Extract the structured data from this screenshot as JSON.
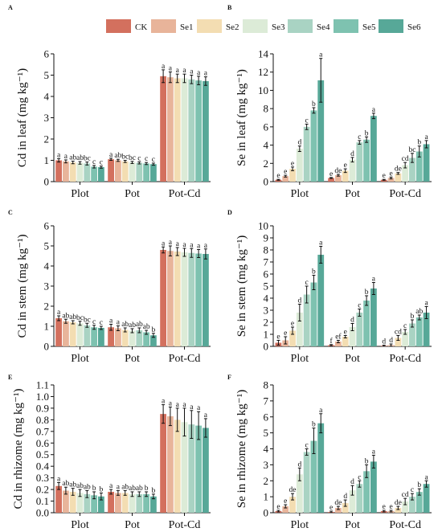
{
  "legend": [
    {
      "name": "CK",
      "color": "#D3705E"
    },
    {
      "name": "Se1",
      "color": "#E8B49A"
    },
    {
      "name": "Se2",
      "color": "#F3DDB2"
    },
    {
      "name": "Se3",
      "color": "#DCEBD7"
    },
    {
      "name": "Se4",
      "color": "#A9D3C3"
    },
    {
      "name": "Se5",
      "color": "#7EC2B0"
    },
    {
      "name": "Se6",
      "color": "#57A898"
    }
  ],
  "chart_data": [
    {
      "panel": "A",
      "type": "bar",
      "ylabel": "Cd in leaf (mg kg⁻¹)",
      "ylim": [
        0,
        6
      ],
      "yticks": [
        "0",
        "1",
        "2",
        "3",
        "4",
        "5",
        "6"
      ],
      "categories": [
        "Plot",
        "Pot",
        "Pot-Cd"
      ],
      "series": [
        {
          "name": "CK",
          "values": [
            1.0,
            1.05,
            4.95
          ],
          "errors": [
            0.08,
            0.05,
            0.3
          ],
          "labels": [
            "a",
            "a",
            "a"
          ]
        },
        {
          "name": "Se1",
          "values": [
            0.95,
            1.0,
            4.9
          ],
          "errors": [
            0.07,
            0.05,
            0.25
          ],
          "labels": [
            "a",
            "ab",
            "a"
          ]
        },
        {
          "name": "Se2",
          "values": [
            0.9,
            0.95,
            4.85
          ],
          "errors": [
            0.06,
            0.05,
            0.2
          ],
          "labels": [
            "ab",
            "bc",
            "a"
          ]
        },
        {
          "name": "Se3",
          "values": [
            0.88,
            0.9,
            4.85
          ],
          "errors": [
            0.06,
            0.05,
            0.2
          ],
          "labels": [
            "ab",
            "bc",
            "a"
          ]
        },
        {
          "name": "Se4",
          "values": [
            0.85,
            0.88,
            4.8
          ],
          "errors": [
            0.07,
            0.05,
            0.2
          ],
          "labels": [
            "bc",
            "c",
            "a"
          ]
        },
        {
          "name": "Se5",
          "values": [
            0.7,
            0.85,
            4.75
          ],
          "errors": [
            0.06,
            0.05,
            0.2
          ],
          "labels": [
            "c",
            "c",
            "a"
          ]
        },
        {
          "name": "Se6",
          "values": [
            0.68,
            0.82,
            4.72
          ],
          "errors": [
            0.05,
            0.05,
            0.2
          ],
          "labels": [
            "c",
            "c",
            "a"
          ]
        }
      ]
    },
    {
      "panel": "B",
      "type": "bar",
      "ylabel": "Se in leaf (mg kg⁻¹)",
      "ylim": [
        0,
        14
      ],
      "yticks": [
        "0",
        "2",
        "4",
        "6",
        "8",
        "10",
        "12",
        "14"
      ],
      "categories": [
        "Plot",
        "Pot",
        "Pot-Cd"
      ],
      "series": [
        {
          "name": "CK",
          "values": [
            0.2,
            0.4,
            0.2
          ],
          "errors": [
            0.05,
            0.05,
            0.05
          ],
          "labels": [
            "e",
            "e",
            "e"
          ]
        },
        {
          "name": "Se1",
          "values": [
            0.6,
            0.7,
            0.4
          ],
          "errors": [
            0.1,
            0.1,
            0.1
          ],
          "labels": [
            "e",
            "de",
            "e"
          ]
        },
        {
          "name": "Se2",
          "values": [
            1.4,
            1.2,
            0.9
          ],
          "errors": [
            0.2,
            0.2,
            0.1
          ],
          "labels": [
            "e",
            "e",
            "de"
          ]
        },
        {
          "name": "Se3",
          "values": [
            3.6,
            2.4,
            1.8
          ],
          "errors": [
            0.3,
            0.25,
            0.3
          ],
          "labels": [
            "d",
            "d",
            "cd"
          ]
        },
        {
          "name": "Se4",
          "values": [
            6.0,
            4.3,
            2.6
          ],
          "errors": [
            0.3,
            0.2,
            0.5
          ],
          "labels": [
            "c",
            "c",
            "bc"
          ]
        },
        {
          "name": "Se5",
          "values": [
            7.8,
            4.6,
            3.3
          ],
          "errors": [
            0.3,
            0.3,
            0.6
          ],
          "labels": [
            "b",
            "b",
            "b"
          ]
        },
        {
          "name": "Se6",
          "values": [
            11.1,
            7.2,
            4.1
          ],
          "errors": [
            2.4,
            0.3,
            0.4
          ],
          "labels": [
            "a",
            "a",
            "a"
          ]
        }
      ]
    },
    {
      "panel": "C",
      "type": "bar",
      "ylabel": "Cd in stem (mg kg⁻¹)",
      "ylim": [
        0,
        6
      ],
      "yticks": [
        "0",
        "1",
        "2",
        "3",
        "4",
        "5",
        "6"
      ],
      "categories": [
        "Plot",
        "Pot",
        "Pot-Cd"
      ],
      "series": [
        {
          "name": "CK",
          "values": [
            1.4,
            0.95,
            4.8
          ],
          "errors": [
            0.12,
            0.15,
            0.15
          ],
          "labels": [
            "a",
            "a",
            "a"
          ]
        },
        {
          "name": "Se1",
          "values": [
            1.25,
            0.9,
            4.75
          ],
          "errors": [
            0.1,
            0.12,
            0.25
          ],
          "labels": [
            "ab",
            "a",
            "a"
          ]
        },
        {
          "name": "Se2",
          "values": [
            1.2,
            0.82,
            4.72
          ],
          "errors": [
            0.08,
            0.1,
            0.2
          ],
          "labels": [
            "ab",
            "ab",
            "a"
          ]
        },
        {
          "name": "Se3",
          "values": [
            1.15,
            0.78,
            4.68
          ],
          "errors": [
            0.1,
            0.1,
            0.2
          ],
          "labels": [
            "bc",
            "ab",
            "a"
          ]
        },
        {
          "name": "Se4",
          "values": [
            1.05,
            0.8,
            4.65
          ],
          "errors": [
            0.1,
            0.12,
            0.22
          ],
          "labels": [
            "bc",
            "ab",
            "a"
          ]
        },
        {
          "name": "Se5",
          "values": [
            0.95,
            0.7,
            4.62
          ],
          "errors": [
            0.1,
            0.1,
            0.2
          ],
          "labels": [
            "c",
            "ab",
            "a"
          ]
        },
        {
          "name": "Se6",
          "values": [
            0.92,
            0.55,
            4.6
          ],
          "errors": [
            0.08,
            0.1,
            0.25
          ],
          "labels": [
            "c",
            "b",
            "a"
          ]
        }
      ]
    },
    {
      "panel": "D",
      "type": "bar",
      "ylabel": "Se in stem (mg kg⁻¹)",
      "ylim": [
        0,
        10
      ],
      "yticks": [
        "0",
        "1",
        "2",
        "3",
        "4",
        "5",
        "6",
        "7",
        "8",
        "9",
        "10"
      ],
      "categories": [
        "Plot",
        "Pot",
        "Pot-Cd"
      ],
      "series": [
        {
          "name": "CK",
          "values": [
            0.3,
            0.1,
            0.05
          ],
          "errors": [
            0.2,
            0.05,
            0.05
          ],
          "labels": [
            "e",
            "f",
            "d"
          ]
        },
        {
          "name": "Se1",
          "values": [
            0.5,
            0.4,
            0.1
          ],
          "errors": [
            0.3,
            0.1,
            0.1
          ],
          "labels": [
            "e",
            "ef",
            "d"
          ]
        },
        {
          "name": "Se2",
          "values": [
            1.3,
            0.8,
            0.7
          ],
          "errors": [
            0.3,
            0.1,
            0.2
          ],
          "labels": [
            "e",
            "e",
            "cd"
          ]
        },
        {
          "name": "Se3",
          "values": [
            2.8,
            1.6,
            1.2
          ],
          "errors": [
            0.7,
            0.3,
            0.2
          ],
          "labels": [
            "d",
            "d",
            "c"
          ]
        },
        {
          "name": "Se4",
          "values": [
            4.3,
            2.8,
            1.9
          ],
          "errors": [
            0.7,
            0.3,
            0.3
          ],
          "labels": [
            "c",
            "c",
            "b"
          ]
        },
        {
          "name": "Se5",
          "values": [
            5.3,
            3.8,
            2.4
          ],
          "errors": [
            0.6,
            0.4,
            0.2
          ],
          "labels": [
            "b",
            "b",
            "ab"
          ]
        },
        {
          "name": "Se6",
          "values": [
            7.6,
            4.8,
            2.8
          ],
          "errors": [
            0.7,
            0.5,
            0.5
          ],
          "labels": [
            "a",
            "a",
            "a"
          ]
        }
      ]
    },
    {
      "panel": "E",
      "type": "bar",
      "ylabel": "Cd in rhizome (mg kg⁻¹)",
      "ylim": [
        0,
        1.1
      ],
      "yticks": [
        "0.0",
        "0.1",
        "0.2",
        "0.3",
        "0.4",
        "0.5",
        "0.6",
        "0.7",
        "0.8",
        "0.9",
        "1.0",
        "1.1"
      ],
      "categories": [
        "Plot",
        "Pot",
        "Pot-Cd"
      ],
      "series": [
        {
          "name": "CK",
          "values": [
            0.23,
            0.18,
            0.85
          ],
          "errors": [
            0.03,
            0.02,
            0.08
          ],
          "labels": [
            "a",
            "a",
            "a"
          ]
        },
        {
          "name": "Se1",
          "values": [
            0.19,
            0.17,
            0.83
          ],
          "errors": [
            0.03,
            0.02,
            0.08
          ],
          "labels": [
            "ab",
            "a",
            "a"
          ]
        },
        {
          "name": "Se2",
          "values": [
            0.18,
            0.17,
            0.8
          ],
          "errors": [
            0.03,
            0.02,
            0.1
          ],
          "labels": [
            "ab",
            "ab",
            "a"
          ]
        },
        {
          "name": "Se3",
          "values": [
            0.17,
            0.16,
            0.78
          ],
          "errors": [
            0.03,
            0.02,
            0.12
          ],
          "labels": [
            "ab",
            "ab",
            "a"
          ]
        },
        {
          "name": "Se4",
          "values": [
            0.16,
            0.16,
            0.76
          ],
          "errors": [
            0.03,
            0.02,
            0.12
          ],
          "labels": [
            "ab",
            "ab",
            "a"
          ]
        },
        {
          "name": "Se5",
          "values": [
            0.15,
            0.16,
            0.75
          ],
          "errors": [
            0.03,
            0.02,
            0.12
          ],
          "labels": [
            "b",
            "b",
            "a"
          ]
        },
        {
          "name": "Se6",
          "values": [
            0.14,
            0.14,
            0.73
          ],
          "errors": [
            0.03,
            0.02,
            0.08
          ],
          "labels": [
            "b",
            "b",
            "a"
          ]
        }
      ]
    },
    {
      "panel": "F",
      "type": "bar",
      "ylabel": "Se in rhizome (mg kg⁻¹)",
      "ylim": [
        0,
        8
      ],
      "yticks": [
        "0",
        "1",
        "2",
        "3",
        "4",
        "5",
        "6",
        "7",
        "8"
      ],
      "categories": [
        "Plot",
        "Pot",
        "Pot-Cd"
      ],
      "series": [
        {
          "name": "CK",
          "values": [
            0.1,
            0.05,
            0.1
          ],
          "errors": [
            0.05,
            0.05,
            0.05
          ],
          "labels": [
            "e",
            "e",
            "e"
          ]
        },
        {
          "name": "Se1",
          "values": [
            0.4,
            0.3,
            0.1
          ],
          "errors": [
            0.1,
            0.1,
            0.05
          ],
          "labels": [
            "e",
            "de",
            "e"
          ]
        },
        {
          "name": "Se2",
          "values": [
            1.0,
            0.6,
            0.3
          ],
          "errors": [
            0.2,
            0.2,
            0.1
          ],
          "labels": [
            "de",
            "d",
            "de"
          ]
        },
        {
          "name": "Se3",
          "values": [
            2.4,
            1.4,
            0.7
          ],
          "errors": [
            0.4,
            0.3,
            0.2
          ],
          "labels": [
            "d",
            "d",
            "cd"
          ]
        },
        {
          "name": "Se4",
          "values": [
            3.8,
            1.8,
            1.0
          ],
          "errors": [
            0.2,
            0.2,
            0.2
          ],
          "labels": [
            "c",
            "c",
            "c"
          ]
        },
        {
          "name": "Se5",
          "values": [
            4.5,
            2.6,
            1.3
          ],
          "errors": [
            0.8,
            0.4,
            0.2
          ],
          "labels": [
            "b",
            "b",
            "b"
          ]
        },
        {
          "name": "Se6",
          "values": [
            5.6,
            3.2,
            1.8
          ],
          "errors": [
            0.6,
            0.4,
            0.2
          ],
          "labels": [
            "a",
            "a",
            "a"
          ]
        }
      ]
    }
  ]
}
